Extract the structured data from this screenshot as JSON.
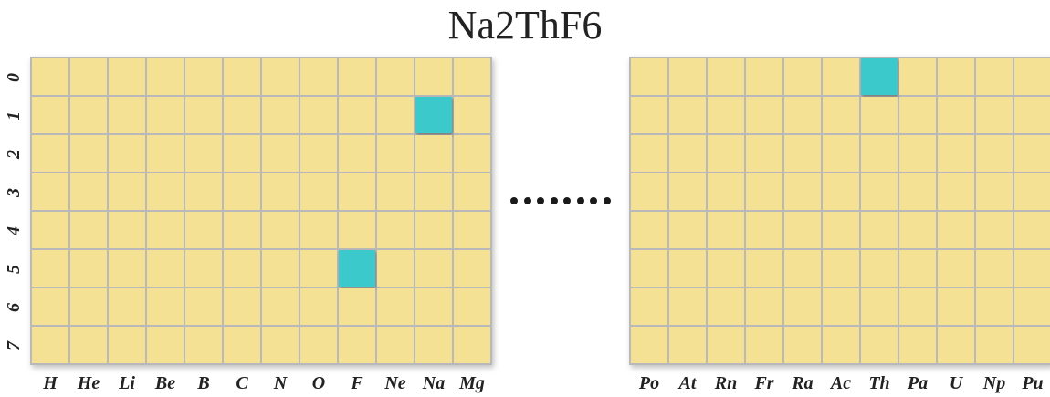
{
  "title": "Na2ThF6",
  "row_labels": [
    "0",
    "1",
    "2",
    "3",
    "4",
    "5",
    "6",
    "7"
  ],
  "left_grid": {
    "columns": [
      "H",
      "He",
      "Li",
      "Be",
      "B",
      "C",
      "N",
      "O",
      "F",
      "Ne",
      "Na",
      "Mg"
    ],
    "highlighted": [
      {
        "column": "Na",
        "row": "1"
      },
      {
        "column": "F",
        "row": "5"
      }
    ]
  },
  "right_grid": {
    "columns": [
      "Po",
      "At",
      "Rn",
      "Fr",
      "Ra",
      "Ac",
      "Th",
      "Pa",
      "U",
      "Np",
      "Pu"
    ],
    "highlighted": [
      {
        "column": "Th",
        "row": "0"
      }
    ]
  },
  "separator": "........",
  "colors": {
    "cell_empty": "#f5e194",
    "cell_filled": "#3cc9cc",
    "grid_line": "#b9b9b9"
  }
}
